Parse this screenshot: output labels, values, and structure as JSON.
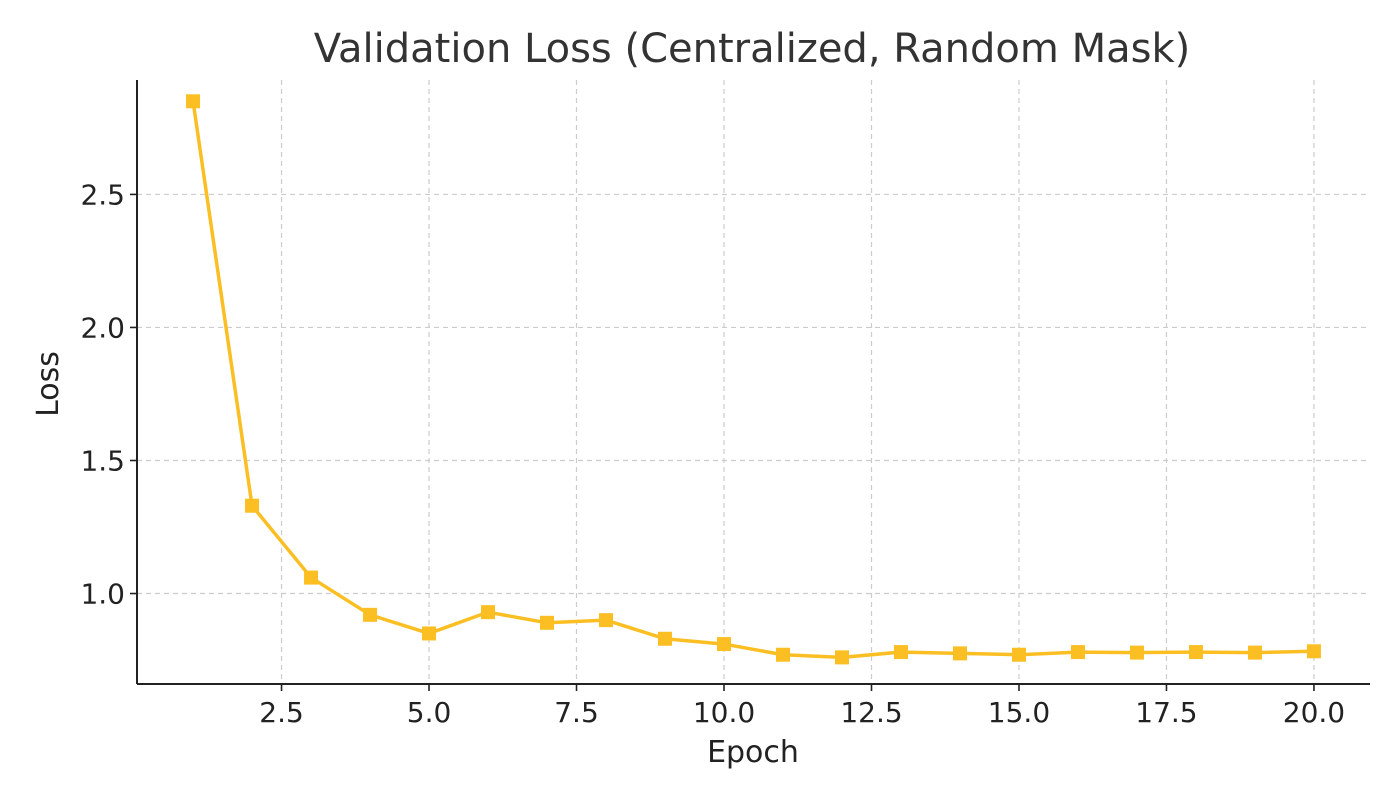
{
  "chart_data": {
    "type": "line",
    "title": "Validation Loss (Centralized, Random Mask)",
    "xlabel": "Epoch",
    "ylabel": "Loss",
    "xlim": [
      0.05,
      20.95
    ],
    "ylim": [
      0.66,
      2.93
    ],
    "xticks": [
      2.5,
      5.0,
      7.5,
      10.0,
      12.5,
      15.0,
      17.5,
      20.0
    ],
    "xtick_labels": [
      "2.5",
      "5.0",
      "7.5",
      "10.0",
      "12.5",
      "15.0",
      "17.5",
      "20.0"
    ],
    "yticks": [
      1.0,
      1.5,
      2.0,
      2.5
    ],
    "ytick_labels": [
      "1.0",
      "1.5",
      "2.0",
      "2.5"
    ],
    "grid": true,
    "series": [
      {
        "color": "#fbbf24",
        "marker": "square",
        "x": [
          1,
          2,
          3,
          4,
          5,
          6,
          7,
          8,
          9,
          10,
          11,
          12,
          13,
          14,
          15,
          16,
          17,
          18,
          19,
          20
        ],
        "values": [
          2.85,
          1.33,
          1.06,
          0.92,
          0.85,
          0.93,
          0.89,
          0.9,
          0.83,
          0.81,
          0.77,
          0.76,
          0.78,
          0.775,
          0.77,
          0.78,
          0.778,
          0.78,
          0.778,
          0.783
        ]
      }
    ]
  }
}
